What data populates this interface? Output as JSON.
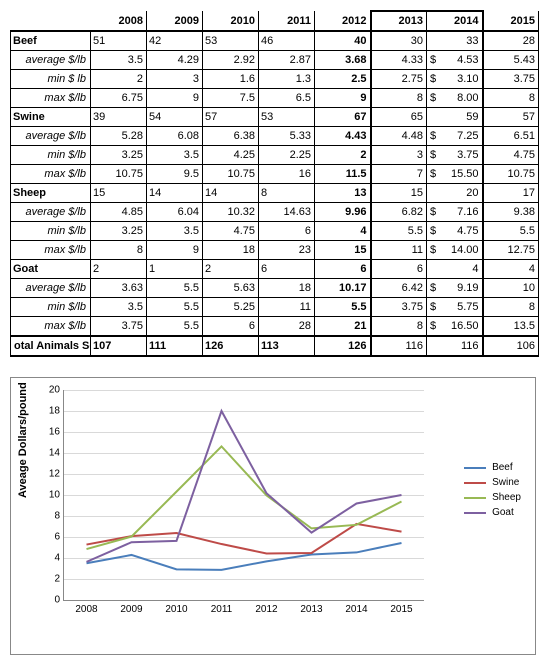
{
  "years": [
    "2008",
    "2009",
    "2010",
    "2011",
    "2012",
    "2013",
    "2014",
    "2015"
  ],
  "table": {
    "categories": [
      {
        "name": "Beef",
        "counts": [
          51,
          42,
          53,
          46,
          40,
          30,
          33,
          28
        ],
        "avg": [
          3.5,
          4.29,
          2.92,
          2.87,
          3.68,
          4.33,
          4.53,
          5.43
        ],
        "min": [
          2,
          3,
          1.6,
          1.3,
          2.5,
          2.75,
          3.1,
          3.75
        ],
        "max": [
          6.75,
          9,
          7.5,
          6.5,
          9,
          8,
          8.0,
          8
        ]
      },
      {
        "name": "Swine",
        "counts": [
          39,
          54,
          57,
          53,
          67,
          65,
          59,
          57
        ],
        "avg": [
          5.28,
          6.08,
          6.38,
          5.33,
          4.43,
          4.48,
          7.25,
          6.51
        ],
        "min": [
          3.25,
          3.5,
          4.25,
          2.25,
          2,
          3,
          3.75,
          4.75
        ],
        "max": [
          10.75,
          9.5,
          10.75,
          16,
          11.5,
          7,
          15.5,
          10.75
        ]
      },
      {
        "name": "Sheep",
        "counts": [
          15,
          14,
          14,
          8,
          13,
          15,
          20,
          17
        ],
        "avg": [
          4.85,
          6.04,
          10.32,
          14.63,
          9.96,
          6.82,
          7.16,
          9.38
        ],
        "min": [
          3.25,
          3.5,
          4.75,
          6,
          4,
          5.5,
          4.75,
          5.5
        ],
        "max": [
          8,
          9,
          18,
          23,
          15,
          11,
          14.0,
          12.75
        ]
      },
      {
        "name": "Goat",
        "counts": [
          2,
          1,
          2,
          6,
          6,
          6,
          4,
          4
        ],
        "avg": [
          3.63,
          5.5,
          5.63,
          18,
          10.17,
          6.42,
          9.19,
          10
        ],
        "min": [
          3.5,
          5.5,
          5.25,
          11,
          5.5,
          3.75,
          5.75,
          8
        ],
        "max": [
          3.75,
          5.5,
          6,
          28,
          21,
          8,
          16.5,
          13.5
        ]
      }
    ],
    "totals": [
      107,
      111,
      126,
      113,
      126,
      116,
      116,
      106
    ],
    "sub_labels": {
      "avg": "average $/lb",
      "min": "min $ lb",
      "min2": "min $/lb",
      "max": "max $/lb"
    },
    "total_label": "otal Animals Sold"
  },
  "chart": {
    "ylabel": "Aveage Dollars/pound",
    "ylim": [
      0,
      20
    ],
    "ytick_step": 2,
    "grid_color": "#d9d9d9",
    "background_color": "#ffffff",
    "axis_color": "#888888",
    "line_width": 2,
    "series": [
      {
        "name": "Beef",
        "color": "#4a7ebb",
        "values": [
          3.5,
          4.29,
          2.92,
          2.87,
          3.68,
          4.33,
          4.53,
          5.43
        ]
      },
      {
        "name": "Swine",
        "color": "#be4b48",
        "values": [
          5.28,
          6.08,
          6.38,
          5.33,
          4.43,
          4.48,
          7.25,
          6.51
        ]
      },
      {
        "name": "Sheep",
        "color": "#98b954",
        "values": [
          4.85,
          6.04,
          10.32,
          14.63,
          9.96,
          6.82,
          7.16,
          9.38
        ]
      },
      {
        "name": "Goat",
        "color": "#7d60a0",
        "values": [
          3.63,
          5.5,
          5.63,
          18,
          10.17,
          6.42,
          9.19,
          10
        ]
      }
    ]
  }
}
